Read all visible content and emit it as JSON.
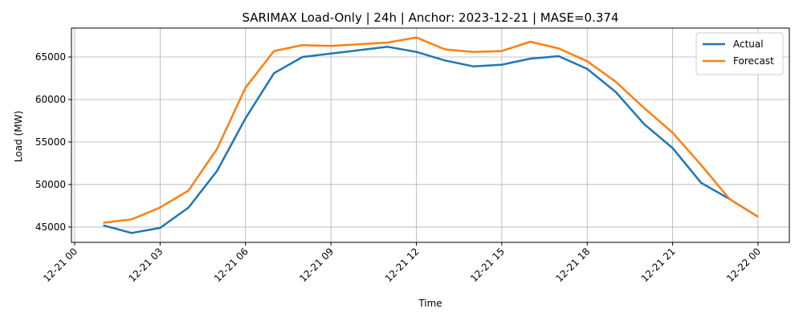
{
  "chart_data": {
    "type": "line",
    "title": "SARIMAX Load-Only | 24h | Anchor: 2023-12-21 | MASE=0.374",
    "xlabel": "Time",
    "ylabel": "Load (MW)",
    "grid": true,
    "legend_position": "top-right",
    "xlim": [
      "2023-12-21 00:00",
      "2023-12-22 00:00"
    ],
    "ylim": [
      43200,
      68400
    ],
    "x_ticks": [
      "12-21 00",
      "12-21 03",
      "12-21 06",
      "12-21 09",
      "12-21 12",
      "12-21 15",
      "12-21 18",
      "12-21 21",
      "12-22 00"
    ],
    "y_ticks": [
      "45000",
      "50000",
      "55000",
      "60000",
      "65000"
    ],
    "x": [
      "2023-12-21 01:00",
      "2023-12-21 02:00",
      "2023-12-21 03:00",
      "2023-12-21 04:00",
      "2023-12-21 05:00",
      "2023-12-21 06:00",
      "2023-12-21 07:00",
      "2023-12-21 08:00",
      "2023-12-21 09:00",
      "2023-12-21 10:00",
      "2023-12-21 11:00",
      "2023-12-21 12:00",
      "2023-12-21 13:00",
      "2023-12-21 14:00",
      "2023-12-21 15:00",
      "2023-12-21 16:00",
      "2023-12-21 17:00",
      "2023-12-21 18:00",
      "2023-12-21 19:00",
      "2023-12-21 20:00",
      "2023-12-21 21:00",
      "2023-12-21 22:00",
      "2023-12-21 23:00",
      "2023-12-22 00:00"
    ],
    "series": [
      {
        "name": "Actual",
        "color": "#1f77b4",
        "values": [
          45200,
          44300,
          44900,
          47300,
          51600,
          57800,
          63100,
          65000,
          65400,
          65800,
          66200,
          65600,
          64600,
          63900,
          64100,
          64800,
          65100,
          63600,
          60900,
          57100,
          54300,
          50200,
          48300,
          46200
        ]
      },
      {
        "name": "Forecast",
        "color": "#ff7f0e",
        "values": [
          45500,
          45900,
          47300,
          49300,
          54200,
          61400,
          65700,
          66400,
          66300,
          66500,
          66700,
          67300,
          65900,
          65600,
          65700,
          66800,
          66000,
          64500,
          62100,
          59000,
          56100,
          52300,
          48300,
          46200
        ]
      }
    ]
  }
}
